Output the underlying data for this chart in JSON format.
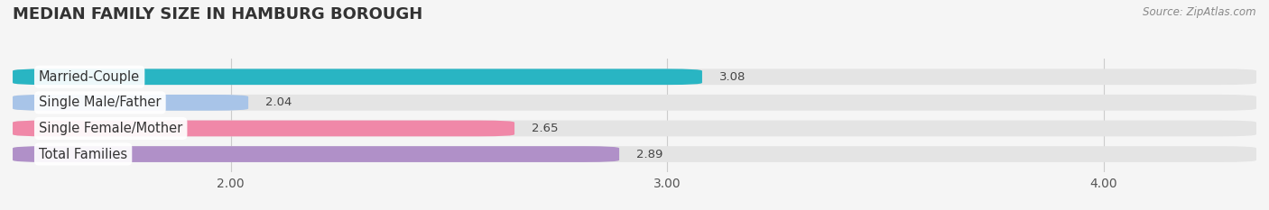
{
  "title": "MEDIAN FAMILY SIZE IN HAMBURG BOROUGH",
  "source": "Source: ZipAtlas.com",
  "categories": [
    "Married-Couple",
    "Single Male/Father",
    "Single Female/Mother",
    "Total Families"
  ],
  "values": [
    3.08,
    2.04,
    2.65,
    2.89
  ],
  "bar_colors": [
    "#29b5c3",
    "#a8c4e8",
    "#f088a8",
    "#b090c8"
  ],
  "bar_bg_color": "#e4e4e4",
  "xmin": 1.5,
  "xmax": 4.35,
  "xticks": [
    2.0,
    3.0,
    4.0
  ],
  "xtick_labels": [
    "2.00",
    "3.00",
    "4.00"
  ],
  "background_color": "#f5f5f5",
  "bar_height": 0.62,
  "label_fontsize": 10.5,
  "title_fontsize": 13,
  "value_fontsize": 9.5,
  "source_fontsize": 8.5
}
